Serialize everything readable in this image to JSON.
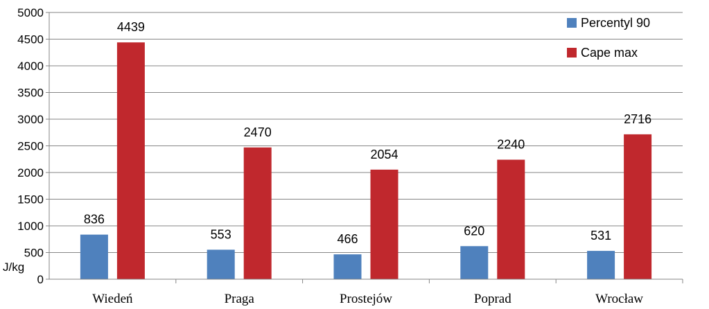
{
  "chart_data": {
    "type": "bar",
    "categories": [
      "Wiedeń",
      "Praga",
      "Prostejów",
      "Poprad",
      "Wrocław"
    ],
    "series": [
      {
        "name": "Percentyl 90",
        "color": "#4F81BD",
        "values": [
          836,
          553,
          466,
          620,
          531
        ]
      },
      {
        "name": "Cape max",
        "color": "#C0282D",
        "values": [
          4439,
          2470,
          2054,
          2240,
          2716
        ]
      }
    ],
    "ylabel": "J/kg",
    "ylim": [
      0,
      5000
    ],
    "yticks": [
      0,
      500,
      1000,
      1500,
      2000,
      2500,
      3000,
      3500,
      4000,
      4500,
      5000
    ],
    "grid": true,
    "legend": "top-right",
    "data_labels": true
  }
}
